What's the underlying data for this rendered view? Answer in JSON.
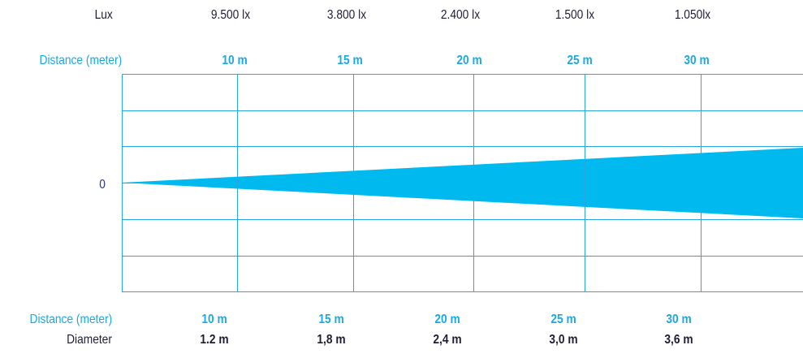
{
  "lux_row": {
    "label": "Lux",
    "values": [
      "9.500 lx",
      "3.800 lx",
      "2.400 lx",
      "1.500 lx",
      "1.050lx"
    ]
  },
  "top_distance_row": {
    "label": "Distance (meter)",
    "values": [
      "10 m",
      "15 m",
      "20 m",
      "25 m",
      "30 m"
    ]
  },
  "axis": {
    "zero_label": "0"
  },
  "bottom_distance_row": {
    "label": "Distance (meter)",
    "values": [
      "10 m",
      "15 m",
      "20 m",
      "25 m",
      "30 m"
    ]
  },
  "diameter_row": {
    "label": "Diameter",
    "values": [
      "1.2 m",
      "1,8 m",
      "2,4 m",
      "3,0 m",
      "3,6 m"
    ]
  },
  "colors": {
    "beam": "#00b9ee",
    "grid": "#27a8e0",
    "label_dark": "#1d1d36",
    "label_cyan": "#1aa9e2"
  }
}
